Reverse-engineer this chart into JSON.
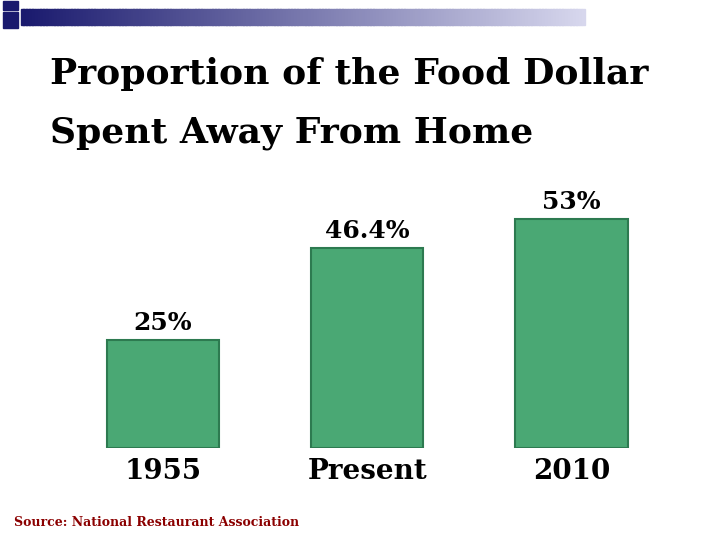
{
  "title_line1": "Proportion of the Food Dollar",
  "title_line2": "Spent Away From Home",
  "categories": [
    "1955",
    "Present",
    "2010"
  ],
  "values": [
    25,
    46.4,
    53
  ],
  "labels": [
    "25%",
    "46.4%",
    "53%"
  ],
  "bar_color": "#4aa874",
  "bar_edge_color": "#2d7a50",
  "background_color": "#ffffff",
  "source_text": "Source: National Restaurant Association",
  "source_color": "#8b0000",
  "title_color": "#000000",
  "label_color": "#000000",
  "category_color": "#000000",
  "ylim": [
    0,
    65
  ],
  "bar_width": 0.55,
  "title_fontsize": 26,
  "label_fontsize": 18,
  "category_fontsize": 20,
  "source_fontsize": 9
}
